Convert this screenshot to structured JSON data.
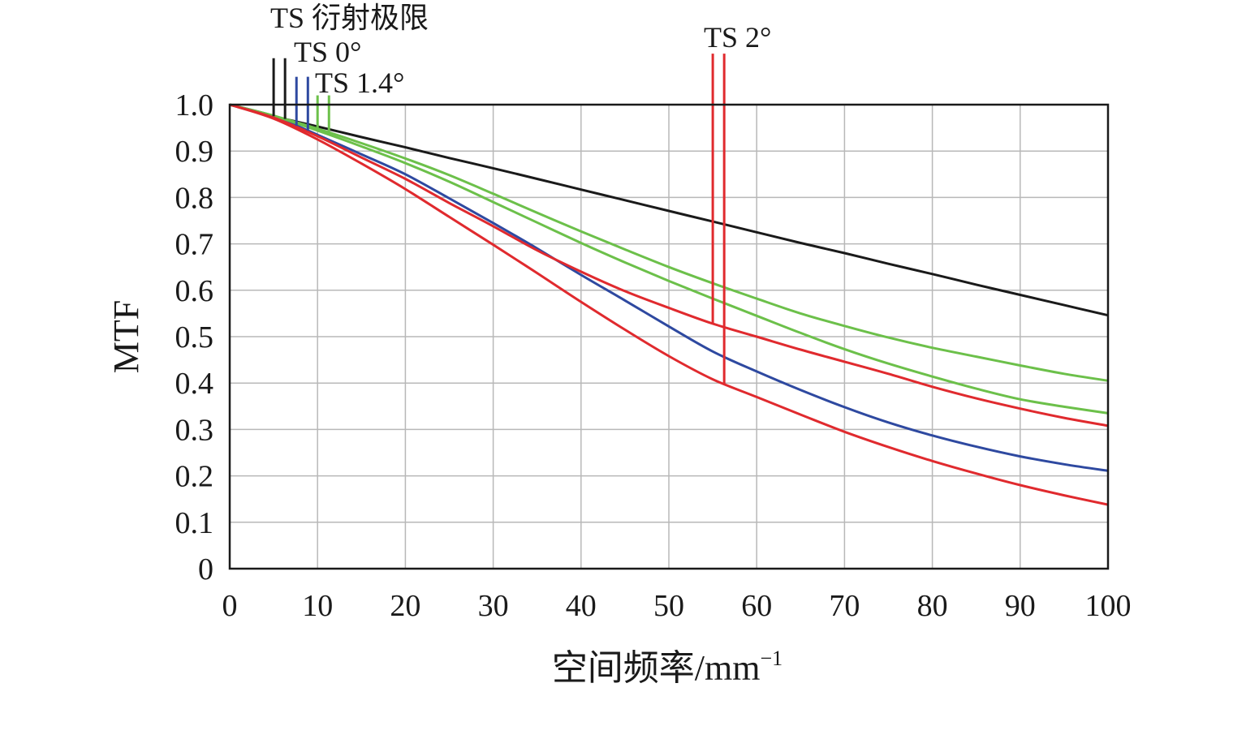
{
  "chart_data": {
    "type": "line",
    "title": "",
    "xlabel": "空间频率/mm",
    "xlabel_sup": "−1",
    "ylabel": "MTF",
    "xlim": [
      0,
      100
    ],
    "ylim": [
      0,
      1.0
    ],
    "grid": true,
    "x_ticks": [
      0,
      10,
      20,
      30,
      40,
      50,
      60,
      70,
      80,
      90,
      100
    ],
    "x_tick_labels": [
      "0",
      "10",
      "20",
      "30",
      "40",
      "50",
      "60",
      "70",
      "80",
      "90",
      "100"
    ],
    "y_ticks": [
      0,
      0.1,
      0.2,
      0.3,
      0.4,
      0.5,
      0.6,
      0.7,
      0.8,
      0.9,
      1.0
    ],
    "y_tick_labels": [
      "0",
      "0.1",
      "0.2",
      "0.3",
      "0.4",
      "0.5",
      "0.6",
      "0.7",
      "0.8",
      "0.9",
      "1.0"
    ],
    "x": [
      0,
      5,
      10,
      15,
      20,
      25,
      30,
      35,
      40,
      45,
      50,
      55,
      60,
      65,
      70,
      75,
      80,
      85,
      90,
      95,
      100
    ],
    "series": [
      {
        "color": "#1a1a1a",
        "values": [
          1.0,
          0.975,
          0.953,
          0.93,
          0.908,
          0.885,
          0.863,
          0.84,
          0.817,
          0.794,
          0.771,
          0.748,
          0.725,
          0.702,
          0.68,
          0.657,
          0.635,
          0.612,
          0.59,
          0.568,
          0.546
        ]
      },
      {
        "color": "#2e49a0",
        "values": [
          1.0,
          0.975,
          0.935,
          0.893,
          0.85,
          0.798,
          0.745,
          0.69,
          0.633,
          0.578,
          0.522,
          0.468,
          0.425,
          0.385,
          0.348,
          0.315,
          0.287,
          0.263,
          0.242,
          0.225,
          0.211
        ]
      },
      {
        "color": "#6cc04a",
        "values": [
          1.0,
          0.976,
          0.948,
          0.917,
          0.884,
          0.848,
          0.808,
          0.767,
          0.727,
          0.688,
          0.65,
          0.615,
          0.582,
          0.55,
          0.523,
          0.498,
          0.476,
          0.457,
          0.438,
          0.42,
          0.405
        ]
      },
      {
        "color": "#6cc04a",
        "values": [
          1.0,
          0.976,
          0.944,
          0.91,
          0.874,
          0.834,
          0.79,
          0.746,
          0.702,
          0.66,
          0.62,
          0.582,
          0.545,
          0.508,
          0.473,
          0.442,
          0.414,
          0.388,
          0.365,
          0.349,
          0.335
        ]
      },
      {
        "color": "#e02a2e",
        "values": [
          1.0,
          0.972,
          0.932,
          0.886,
          0.84,
          0.788,
          0.738,
          0.686,
          0.64,
          0.598,
          0.562,
          0.528,
          0.5,
          0.472,
          0.446,
          0.42,
          0.392,
          0.367,
          0.345,
          0.325,
          0.308
        ]
      },
      {
        "color": "#e02a2e",
        "values": [
          1.0,
          0.97,
          0.925,
          0.873,
          0.818,
          0.758,
          0.698,
          0.637,
          0.575,
          0.515,
          0.458,
          0.408,
          0.37,
          0.332,
          0.295,
          0.262,
          0.232,
          0.205,
          0.18,
          0.158,
          0.138
        ]
      }
    ],
    "annotations": [
      {
        "text": "TS 衍射极限",
        "color": "#1a1a1a",
        "markers_x": [
          5.0,
          6.3
        ],
        "marker_top": 1.1
      },
      {
        "text": "TS 0°",
        "color": "#2e49a0",
        "markers_x": [
          7.6,
          8.9
        ],
        "marker_top": 1.06
      },
      {
        "text": "TS 1.4°",
        "color": "#6cc04a",
        "markers_x": [
          10.0,
          11.3
        ],
        "marker_top": 1.02
      },
      {
        "text": "TS 2°",
        "color": "#e02a2e",
        "markers_x": [
          55.0,
          56.3
        ],
        "marker_top": 1.11
      }
    ]
  }
}
